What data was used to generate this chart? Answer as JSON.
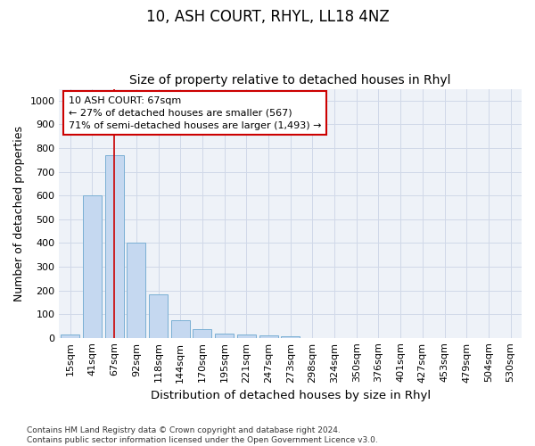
{
  "title": "10, ASH COURT, RHYL, LL18 4NZ",
  "subtitle": "Size of property relative to detached houses in Rhyl",
  "xlabel": "Distribution of detached houses by size in Rhyl",
  "ylabel": "Number of detached properties",
  "categories": [
    "15sqm",
    "41sqm",
    "67sqm",
    "92sqm",
    "118sqm",
    "144sqm",
    "170sqm",
    "195sqm",
    "221sqm",
    "247sqm",
    "273sqm",
    "298sqm",
    "324sqm",
    "350sqm",
    "376sqm",
    "401sqm",
    "427sqm",
    "453sqm",
    "479sqm",
    "504sqm",
    "530sqm"
  ],
  "values": [
    15,
    600,
    770,
    400,
    185,
    75,
    38,
    18,
    13,
    10,
    5,
    0,
    0,
    0,
    0,
    0,
    0,
    0,
    0,
    0,
    0
  ],
  "bar_color": "#c5d8f0",
  "bar_edge_color": "#7aafd4",
  "property_line_x": 2,
  "property_line_color": "#cc0000",
  "annotation_line1": "10 ASH COURT: 67sqm",
  "annotation_line2": "← 27% of detached houses are smaller (567)",
  "annotation_line3": "71% of semi-detached houses are larger (1,493) →",
  "annotation_box_color": "#cc0000",
  "ylim": [
    0,
    1050
  ],
  "yticks": [
    0,
    100,
    200,
    300,
    400,
    500,
    600,
    700,
    800,
    900,
    1000
  ],
  "grid_color": "#d0d8e8",
  "background_color": "#eef2f8",
  "footer": "Contains HM Land Registry data © Crown copyright and database right 2024.\nContains public sector information licensed under the Open Government Licence v3.0.",
  "title_fontsize": 12,
  "subtitle_fontsize": 10,
  "xlabel_fontsize": 9.5,
  "ylabel_fontsize": 9,
  "tick_fontsize": 8,
  "annotation_fontsize": 8,
  "footer_fontsize": 6.5
}
